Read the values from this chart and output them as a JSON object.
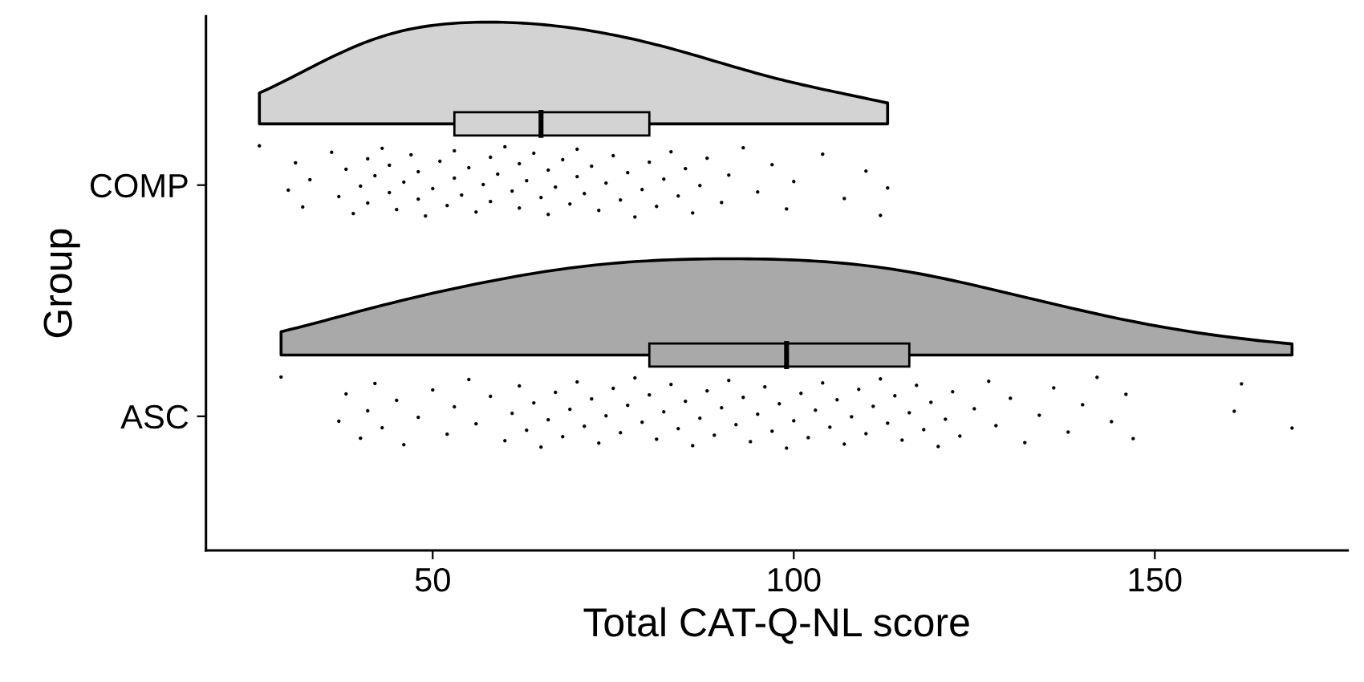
{
  "chart_data": {
    "type": "box",
    "orientation": "horizontal",
    "xlabel": "Total CAT-Q-NL score",
    "ylabel": "Group",
    "categories": [
      "COMP",
      "ASC"
    ],
    "boxes": [
      {
        "low": null,
        "q1": 53,
        "median": 65,
        "q3": 80,
        "high": null
      },
      {
        "low": null,
        "q1": 80,
        "median": 99,
        "q3": 116,
        "high": null
      }
    ],
    "colors": [
      "#d3d3d3",
      "#a9a9a9"
    ],
    "xlim": [
      18.6,
      176.7
    ],
    "xticks": [
      50,
      100,
      150
    ],
    "grid": false,
    "legend": false,
    "series": [
      {
        "type": "scatter",
        "color": "#000000",
        "x": [
          "COMP",
          "COMP",
          "COMP",
          "COMP",
          "COMP",
          "COMP",
          "COMP",
          "COMP",
          "COMP",
          "COMP",
          "COMP",
          "COMP",
          "COMP",
          "COMP",
          "COMP",
          "COMP",
          "COMP",
          "COMP",
          "COMP",
          "COMP",
          "COMP",
          "COMP",
          "COMP",
          "COMP",
          "COMP",
          "COMP",
          "COMP",
          "COMP",
          "COMP",
          "COMP",
          "COMP",
          "COMP",
          "COMP",
          "COMP",
          "COMP",
          "COMP",
          "COMP",
          "COMP",
          "COMP",
          "COMP",
          "COMP",
          "COMP",
          "COMP",
          "COMP",
          "COMP",
          "COMP",
          "COMP",
          "COMP",
          "COMP",
          "COMP",
          "COMP",
          "COMP",
          "COMP",
          "COMP",
          "COMP",
          "COMP",
          "COMP",
          "COMP",
          "COMP",
          "COMP",
          "COMP",
          "COMP",
          "COMP",
          "COMP",
          "COMP",
          "COMP",
          "COMP",
          "COMP",
          "COMP",
          "COMP",
          "COMP",
          "COMP",
          "COMP",
          "COMP",
          "COMP",
          "COMP",
          "COMP",
          "COMP"
        ],
        "values": [
          26,
          30,
          31,
          32,
          33,
          36,
          37,
          38,
          39,
          40,
          41,
          41,
          42,
          43,
          44,
          44,
          45,
          46,
          47,
          48,
          48,
          49,
          50,
          51,
          52,
          53,
          53,
          54,
          55,
          56,
          57,
          58,
          58,
          59,
          60,
          61,
          62,
          62,
          63,
          64,
          65,
          66,
          66,
          67,
          68,
          69,
          70,
          70,
          71,
          72,
          73,
          74,
          75,
          76,
          77,
          78,
          79,
          80,
          81,
          82,
          83,
          84,
          85,
          86,
          87,
          88,
          90,
          91,
          93,
          95,
          97,
          99,
          100,
          104,
          107,
          110,
          112,
          113
        ]
      },
      {
        "type": "scatter",
        "color": "#000000",
        "x": [
          "ASC",
          "ASC",
          "ASC",
          "ASC",
          "ASC",
          "ASC",
          "ASC",
          "ASC",
          "ASC",
          "ASC",
          "ASC",
          "ASC",
          "ASC",
          "ASC",
          "ASC",
          "ASC",
          "ASC",
          "ASC",
          "ASC",
          "ASC",
          "ASC",
          "ASC",
          "ASC",
          "ASC",
          "ASC",
          "ASC",
          "ASC",
          "ASC",
          "ASC",
          "ASC",
          "ASC",
          "ASC",
          "ASC",
          "ASC",
          "ASC",
          "ASC",
          "ASC",
          "ASC",
          "ASC",
          "ASC",
          "ASC",
          "ASC",
          "ASC",
          "ASC",
          "ASC",
          "ASC",
          "ASC",
          "ASC",
          "ASC",
          "ASC",
          "ASC",
          "ASC",
          "ASC",
          "ASC",
          "ASC",
          "ASC",
          "ASC",
          "ASC",
          "ASC",
          "ASC",
          "ASC",
          "ASC",
          "ASC",
          "ASC",
          "ASC",
          "ASC",
          "ASC",
          "ASC",
          "ASC",
          "ASC",
          "ASC",
          "ASC",
          "ASC",
          "ASC",
          "ASC",
          "ASC",
          "ASC",
          "ASC",
          "ASC",
          "ASC",
          "ASC",
          "ASC",
          "ASC",
          "ASC",
          "ASC",
          "ASC",
          "ASC",
          "ASC",
          "ASC",
          "ASC",
          "ASC",
          "ASC",
          "ASC",
          "ASC",
          "ASC",
          "ASC"
        ],
        "values": [
          29,
          37,
          38,
          40,
          41,
          42,
          43,
          45,
          46,
          48,
          50,
          52,
          53,
          55,
          56,
          58,
          60,
          61,
          62,
          63,
          64,
          65,
          66,
          67,
          68,
          69,
          70,
          71,
          72,
          73,
          74,
          75,
          76,
          77,
          78,
          79,
          80,
          81,
          82,
          83,
          84,
          85,
          86,
          87,
          88,
          89,
          90,
          91,
          92,
          93,
          94,
          95,
          96,
          97,
          98,
          99,
          100,
          101,
          102,
          103,
          104,
          105,
          106,
          107,
          108,
          109,
          110,
          111,
          112,
          113,
          114,
          115,
          116,
          117,
          118,
          119,
          120,
          121,
          122,
          123,
          125,
          127,
          128,
          130,
          132,
          134,
          136,
          138,
          140,
          142,
          144,
          146,
          147,
          161,
          162,
          169
        ]
      }
    ]
  }
}
